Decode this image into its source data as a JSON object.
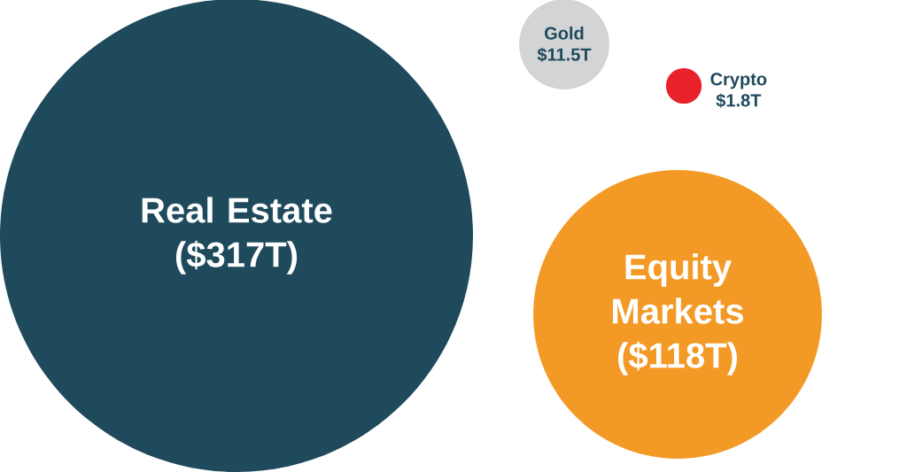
{
  "chart_data": {
    "type": "other",
    "categories": [
      "Real Estate",
      "Equity Markets",
      "Gold",
      "Crypto"
    ],
    "values": [
      317,
      118,
      11.5,
      1.8
    ],
    "value_labels": [
      "($317T)",
      "($118T)",
      "$11.5T",
      "$1.8T"
    ],
    "colors": [
      "#1e4a5c",
      "#f39a26",
      "#d3d4d6",
      "#e8212a"
    ]
  }
}
